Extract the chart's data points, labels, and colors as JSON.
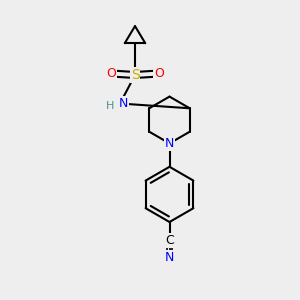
{
  "background_color": "#eeeeee",
  "atom_colors": {
    "C": "#000000",
    "N": "#0000ff",
    "O": "#ff0000",
    "S": "#ccaa00",
    "H": "#4a9090"
  },
  "bond_color": "#000000",
  "figsize": [
    3.0,
    3.0
  ],
  "dpi": 100
}
